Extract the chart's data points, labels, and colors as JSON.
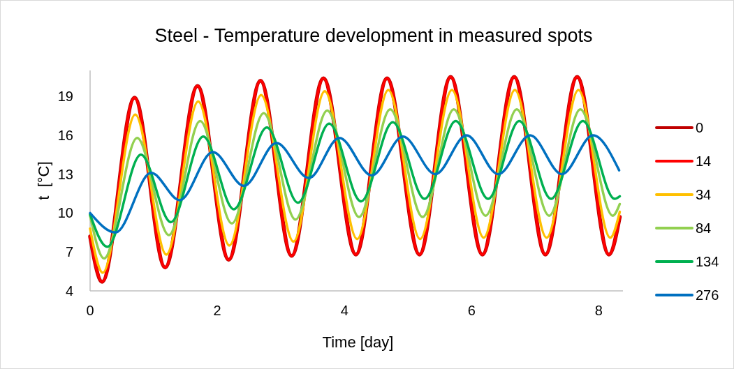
{
  "chart_data": {
    "type": "line",
    "title": "Steel - Temperature development in measured spots",
    "xlabel": "Time [day]",
    "ylabel": "t  [°C]",
    "xlim": [
      0,
      8.38
    ],
    "xticks": [
      0,
      2,
      4,
      6,
      8
    ],
    "ylim": [
      4,
      21
    ],
    "yticks": [
      4,
      7,
      10,
      13,
      16,
      19
    ],
    "grid": false,
    "legend": "right",
    "marker": "none",
    "line_style": "solid",
    "series": [
      {
        "name": "0",
        "color": "#c00000",
        "x": [
          0,
          0.19,
          0.7,
          1.18,
          1.69,
          2.18,
          2.68,
          3.17,
          3.67,
          4.18,
          4.67,
          5.18,
          5.67,
          6.17,
          6.67,
          7.16,
          7.66,
          8.16,
          8.33
        ],
        "values": [
          8.2,
          4.7,
          18.9,
          5.8,
          19.8,
          6.4,
          20.2,
          6.7,
          20.4,
          6.8,
          20.4,
          6.8,
          20.5,
          6.8,
          20.5,
          6.8,
          20.5,
          6.8,
          9.7
        ]
      },
      {
        "name": "14",
        "color": "#ff0000",
        "x": [
          0,
          0.19,
          0.7,
          1.18,
          1.69,
          2.18,
          2.68,
          3.17,
          3.67,
          4.18,
          4.67,
          5.18,
          5.67,
          6.17,
          6.67,
          7.16,
          7.66,
          8.16,
          8.33
        ],
        "values": [
          8.2,
          4.7,
          18.9,
          5.8,
          19.8,
          6.4,
          20.2,
          6.7,
          20.4,
          6.8,
          20.4,
          6.8,
          20.5,
          6.8,
          20.5,
          6.8,
          20.5,
          6.8,
          9.7
        ]
      },
      {
        "name": "34",
        "color": "#ffc000",
        "x": [
          0,
          0.2,
          0.71,
          1.2,
          1.7,
          2.19,
          2.69,
          3.2,
          3.69,
          4.2,
          4.69,
          5.19,
          5.69,
          6.19,
          6.68,
          7.18,
          7.68,
          8.18,
          8.33
        ],
        "values": [
          8.8,
          5.4,
          17.6,
          6.8,
          18.6,
          7.5,
          19.1,
          7.8,
          19.4,
          8.0,
          19.5,
          8.0,
          19.5,
          8.1,
          19.5,
          8.1,
          19.5,
          8.1,
          10.1
        ]
      },
      {
        "name": "84",
        "color": "#92d050",
        "x": [
          0,
          0.22,
          0.74,
          1.24,
          1.73,
          2.23,
          2.73,
          3.23,
          3.73,
          4.23,
          4.72,
          5.23,
          5.72,
          6.22,
          6.71,
          7.22,
          7.71,
          8.22,
          8.33
        ],
        "values": [
          9.8,
          6.5,
          15.8,
          8.3,
          17.1,
          9.2,
          17.7,
          9.5,
          17.9,
          9.7,
          18.0,
          9.7,
          18.0,
          9.8,
          18.0,
          9.8,
          18.0,
          9.8,
          10.7
        ]
      },
      {
        "name": "134",
        "color": "#00b050",
        "x": [
          0,
          0.27,
          0.8,
          1.27,
          1.78,
          2.26,
          2.78,
          3.27,
          3.76,
          4.26,
          4.76,
          5.26,
          5.75,
          6.26,
          6.75,
          7.25,
          7.75,
          8.25,
          8.33
        ],
        "values": [
          9.9,
          7.4,
          14.5,
          9.3,
          15.9,
          10.3,
          16.6,
          10.8,
          16.9,
          10.9,
          17.0,
          11.1,
          17.1,
          11.1,
          17.1,
          11.1,
          17.1,
          11.1,
          11.3
        ]
      },
      {
        "name": "276",
        "color": "#0070c0",
        "x": [
          0,
          0.4,
          0.96,
          1.41,
          1.93,
          2.42,
          2.93,
          3.44,
          3.92,
          4.43,
          4.92,
          5.43,
          5.92,
          6.42,
          6.92,
          7.42,
          7.91,
          8.32
        ],
        "values": [
          10.0,
          8.5,
          13.1,
          11.0,
          14.7,
          12.1,
          15.4,
          12.7,
          15.8,
          12.9,
          15.9,
          13.0,
          16.0,
          13.0,
          16.0,
          13.0,
          16.0,
          13.3
        ]
      }
    ]
  }
}
